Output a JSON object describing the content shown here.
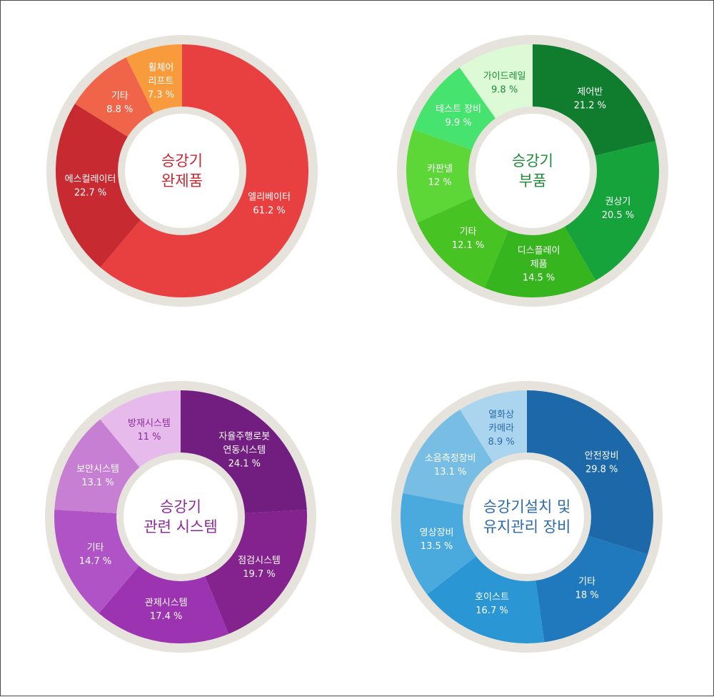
{
  "chart_data": [
    {
      "type": "pie",
      "center_title": [
        "승강기",
        "완제품"
      ],
      "title_color": "#c9252e",
      "label_color": "#ffffff",
      "categories": [
        "엘리베이터",
        "에스컬레이터",
        "기타",
        "휠체어 리프트"
      ],
      "label_lines": [
        [
          "엘리베이터"
        ],
        [
          "에스컬레이터"
        ],
        [
          "기타"
        ],
        [
          "휠체어",
          "리프트"
        ]
      ],
      "values": [
        61.2,
        22.7,
        8.8,
        7.3
      ],
      "value_labels": [
        "61.2 %",
        "22.7 %",
        "8.8 %",
        "7.3 %"
      ],
      "colors": [
        "#e84040",
        "#c82a31",
        "#f0654a",
        "#f89b3c"
      ]
    },
    {
      "type": "pie",
      "center_title": [
        "승강기",
        "부품"
      ],
      "title_color": "#1e8a37",
      "label_color": "#ffffff",
      "categories": [
        "제어반",
        "권상기",
        "디스플레이 제품",
        "기타",
        "카판넬",
        "테스트 장비",
        "가이드레일"
      ],
      "label_lines": [
        [
          "제어반"
        ],
        [
          "권상기"
        ],
        [
          "디스플레이",
          "제품"
        ],
        [
          "기타"
        ],
        [
          "카판넬"
        ],
        [
          "테스트 장비"
        ],
        [
          "가이드레일"
        ]
      ],
      "values": [
        21.2,
        20.5,
        14.5,
        12.1,
        12,
        9.9,
        9.8
      ],
      "value_labels": [
        "21.2 %",
        "20.5 %",
        "14.5 %",
        "12.1 %",
        "12 %",
        "9.9 %",
        "9.8 %"
      ],
      "colors": [
        "#0f7c2e",
        "#16a33c",
        "#36b51f",
        "#47c424",
        "#5dd637",
        "#46e46e",
        "#dbfad5"
      ],
      "dark_label_slices": [
        6
      ]
    },
    {
      "type": "pie",
      "center_title": [
        "승강기",
        "관련 시스템"
      ],
      "title_color": "#8c2a9a",
      "label_color": "#ffffff",
      "categories": [
        "자율주행로봇 연동시스템",
        "점검시스템",
        "관제시스템",
        "기타",
        "보안시스템",
        "방재시스템"
      ],
      "label_lines": [
        [
          "자율주행로봇",
          "연동시스템"
        ],
        [
          "점검시스템"
        ],
        [
          "관제시스템"
        ],
        [
          "기타"
        ],
        [
          "보안시스템"
        ],
        [
          "방재시스템"
        ]
      ],
      "values": [
        24.1,
        19.7,
        17.4,
        14.7,
        13.1,
        11
      ],
      "value_labels": [
        "24.1 %",
        "19.7 %",
        "17.4 %",
        "14.7 %",
        "13.1 %",
        "11 %"
      ],
      "colors": [
        "#721d80",
        "#84228e",
        "#9c34b2",
        "#b053c7",
        "#c67fd3",
        "#e6baea"
      ],
      "dark_label_slices": [
        5
      ]
    },
    {
      "type": "pie",
      "center_title": [
        "승강기설치 및",
        "유지관리 장비"
      ],
      "title_color": "#2a6aab",
      "label_color": "#ffffff",
      "categories": [
        "안전장비",
        "기타",
        "호이스트",
        "영상장비",
        "소음측정장비",
        "열화상 카메라"
      ],
      "label_lines": [
        [
          "안전장비"
        ],
        [
          "기타"
        ],
        [
          "호이스트"
        ],
        [
          "영상장비"
        ],
        [
          "소음측정장비"
        ],
        [
          "열화상",
          "카메라"
        ]
      ],
      "values": [
        29.8,
        18,
        16.7,
        13.5,
        13.1,
        8.9
      ],
      "value_labels": [
        "29.8 %",
        "18 %",
        "16.7 %",
        "13.5 %",
        "13.1 %",
        "8.9 %"
      ],
      "colors": [
        "#1c68a9",
        "#2179bd",
        "#2a96d3",
        "#4aa9dd",
        "#78bde3",
        "#abd5ee"
      ],
      "dark_label_slices": [
        5
      ]
    }
  ]
}
